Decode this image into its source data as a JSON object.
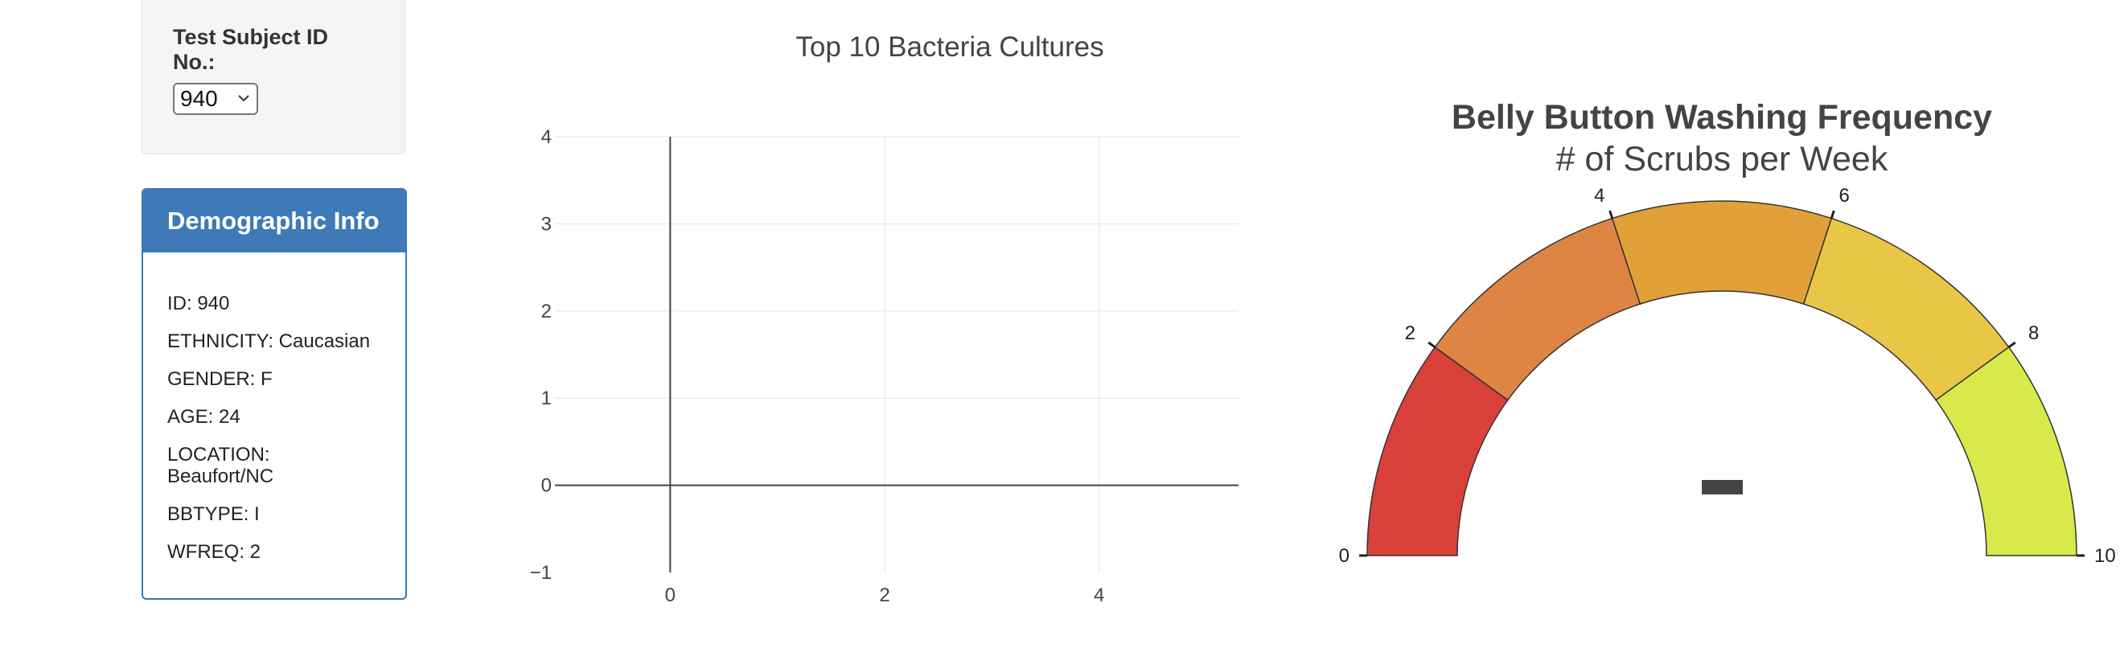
{
  "selector": {
    "label": "Test Subject ID No.:",
    "selected_value": "940"
  },
  "demographic_panel": {
    "title": "Demographic Info",
    "items": [
      "ID: 940",
      "ETHNICITY: Caucasian",
      "GENDER: F",
      "AGE: 24",
      "LOCATION: Beaufort/NC",
      "BBTYPE: I",
      "WFREQ: 2"
    ]
  },
  "colors": {
    "panel_heading": "#3d7ab7",
    "gauge_steps": [
      "#d9413a",
      "#df8544",
      "#e2a038",
      "#e8c746",
      "#d9e84a"
    ]
  },
  "chart_data": [
    {
      "type": "bar",
      "title": "Top 10 Bacteria Cultures",
      "categories": [],
      "values": [],
      "xlim": [
        -1,
        5.3
      ],
      "ylim": [
        -1,
        4
      ],
      "x_ticks": [
        "0",
        "2",
        "4"
      ],
      "y_ticks": [
        "−1",
        "0",
        "1",
        "2",
        "3",
        "4"
      ],
      "grid": true
    },
    {
      "type": "gauge",
      "title": "Belly Button Washing Frequency",
      "subtitle": "# of Scrubs per Week",
      "range": [
        0,
        10
      ],
      "ticks": [
        "0",
        "2",
        "4",
        "6",
        "8",
        "10"
      ],
      "steps": [
        [
          0,
          2
        ],
        [
          2,
          4
        ],
        [
          4,
          6
        ],
        [
          6,
          8
        ],
        [
          8,
          10
        ]
      ]
    }
  ]
}
